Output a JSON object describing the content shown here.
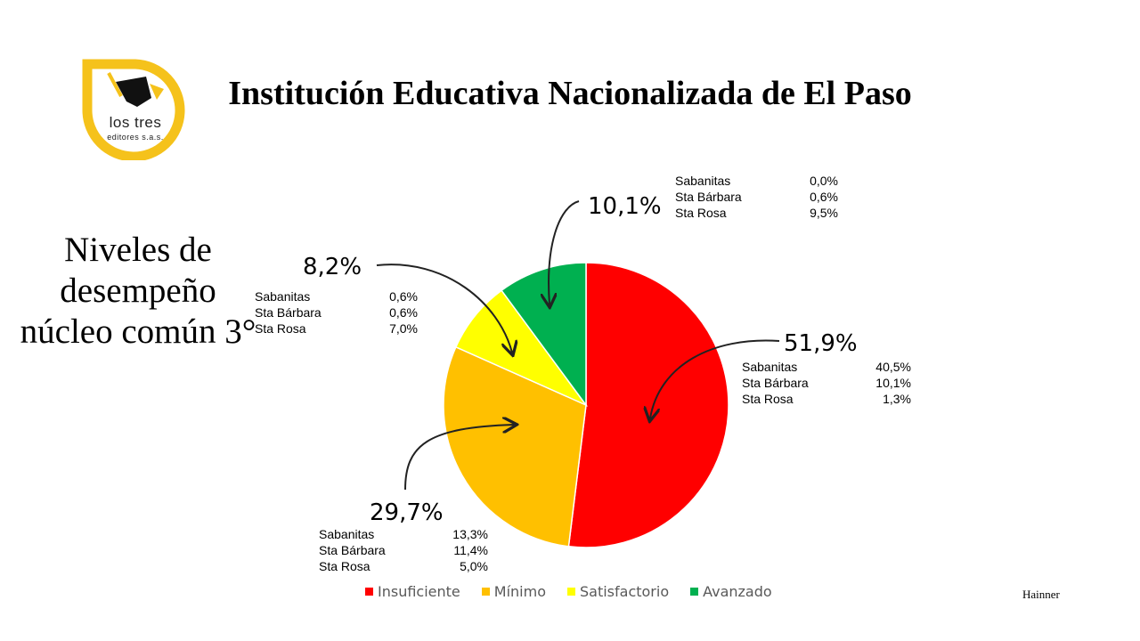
{
  "logo": {
    "word1": "los tres",
    "word2": "editores s.a.s."
  },
  "title": "Institución Educativa Nacionalizada de El Paso",
  "subtitle": "Niveles de desempeño núcleo común 3°",
  "author": "Hainner",
  "chart_data": {
    "type": "pie",
    "title": "Institución Educativa Nacionalizada de El Paso",
    "categories": [
      "Insuficiente",
      "Mínimo",
      "Satisfactorio",
      "Avanzado"
    ],
    "values": [
      51.9,
      29.7,
      8.2,
      10.1
    ],
    "labels": [
      "51,9%",
      "29,7%",
      "8,2%",
      "10,1%"
    ],
    "colors": [
      "#ff0000",
      "#ffc000",
      "#ffff00",
      "#00b050"
    ],
    "legend_position": "bottom",
    "breakdown": [
      {
        "category": "Insuficiente",
        "rows": [
          {
            "name": "Sabanitas",
            "value": "40,5%"
          },
          {
            "name": "Sta Bárbara",
            "value": "10,1%"
          },
          {
            "name": "Sta Rosa",
            "value": "1,3%"
          }
        ]
      },
      {
        "category": "Mínimo",
        "rows": [
          {
            "name": "Sabanitas",
            "value": "13,3%"
          },
          {
            "name": "Sta Bárbara",
            "value": "11,4%"
          },
          {
            "name": "Sta Rosa",
            "value": "5,0%"
          }
        ]
      },
      {
        "category": "Satisfactorio",
        "rows": [
          {
            "name": "Sabanitas",
            "value": "0,6%"
          },
          {
            "name": "Sta Bárbara",
            "value": "0,6%"
          },
          {
            "name": "Sta Rosa",
            "value": "7,0%"
          }
        ]
      },
      {
        "category": "Avanzado",
        "rows": [
          {
            "name": "Sabanitas",
            "value": "0,0%"
          },
          {
            "name": "Sta Bárbara",
            "value": "0,6%"
          },
          {
            "name": "Sta Rosa",
            "value": "9,5%"
          }
        ]
      }
    ]
  }
}
